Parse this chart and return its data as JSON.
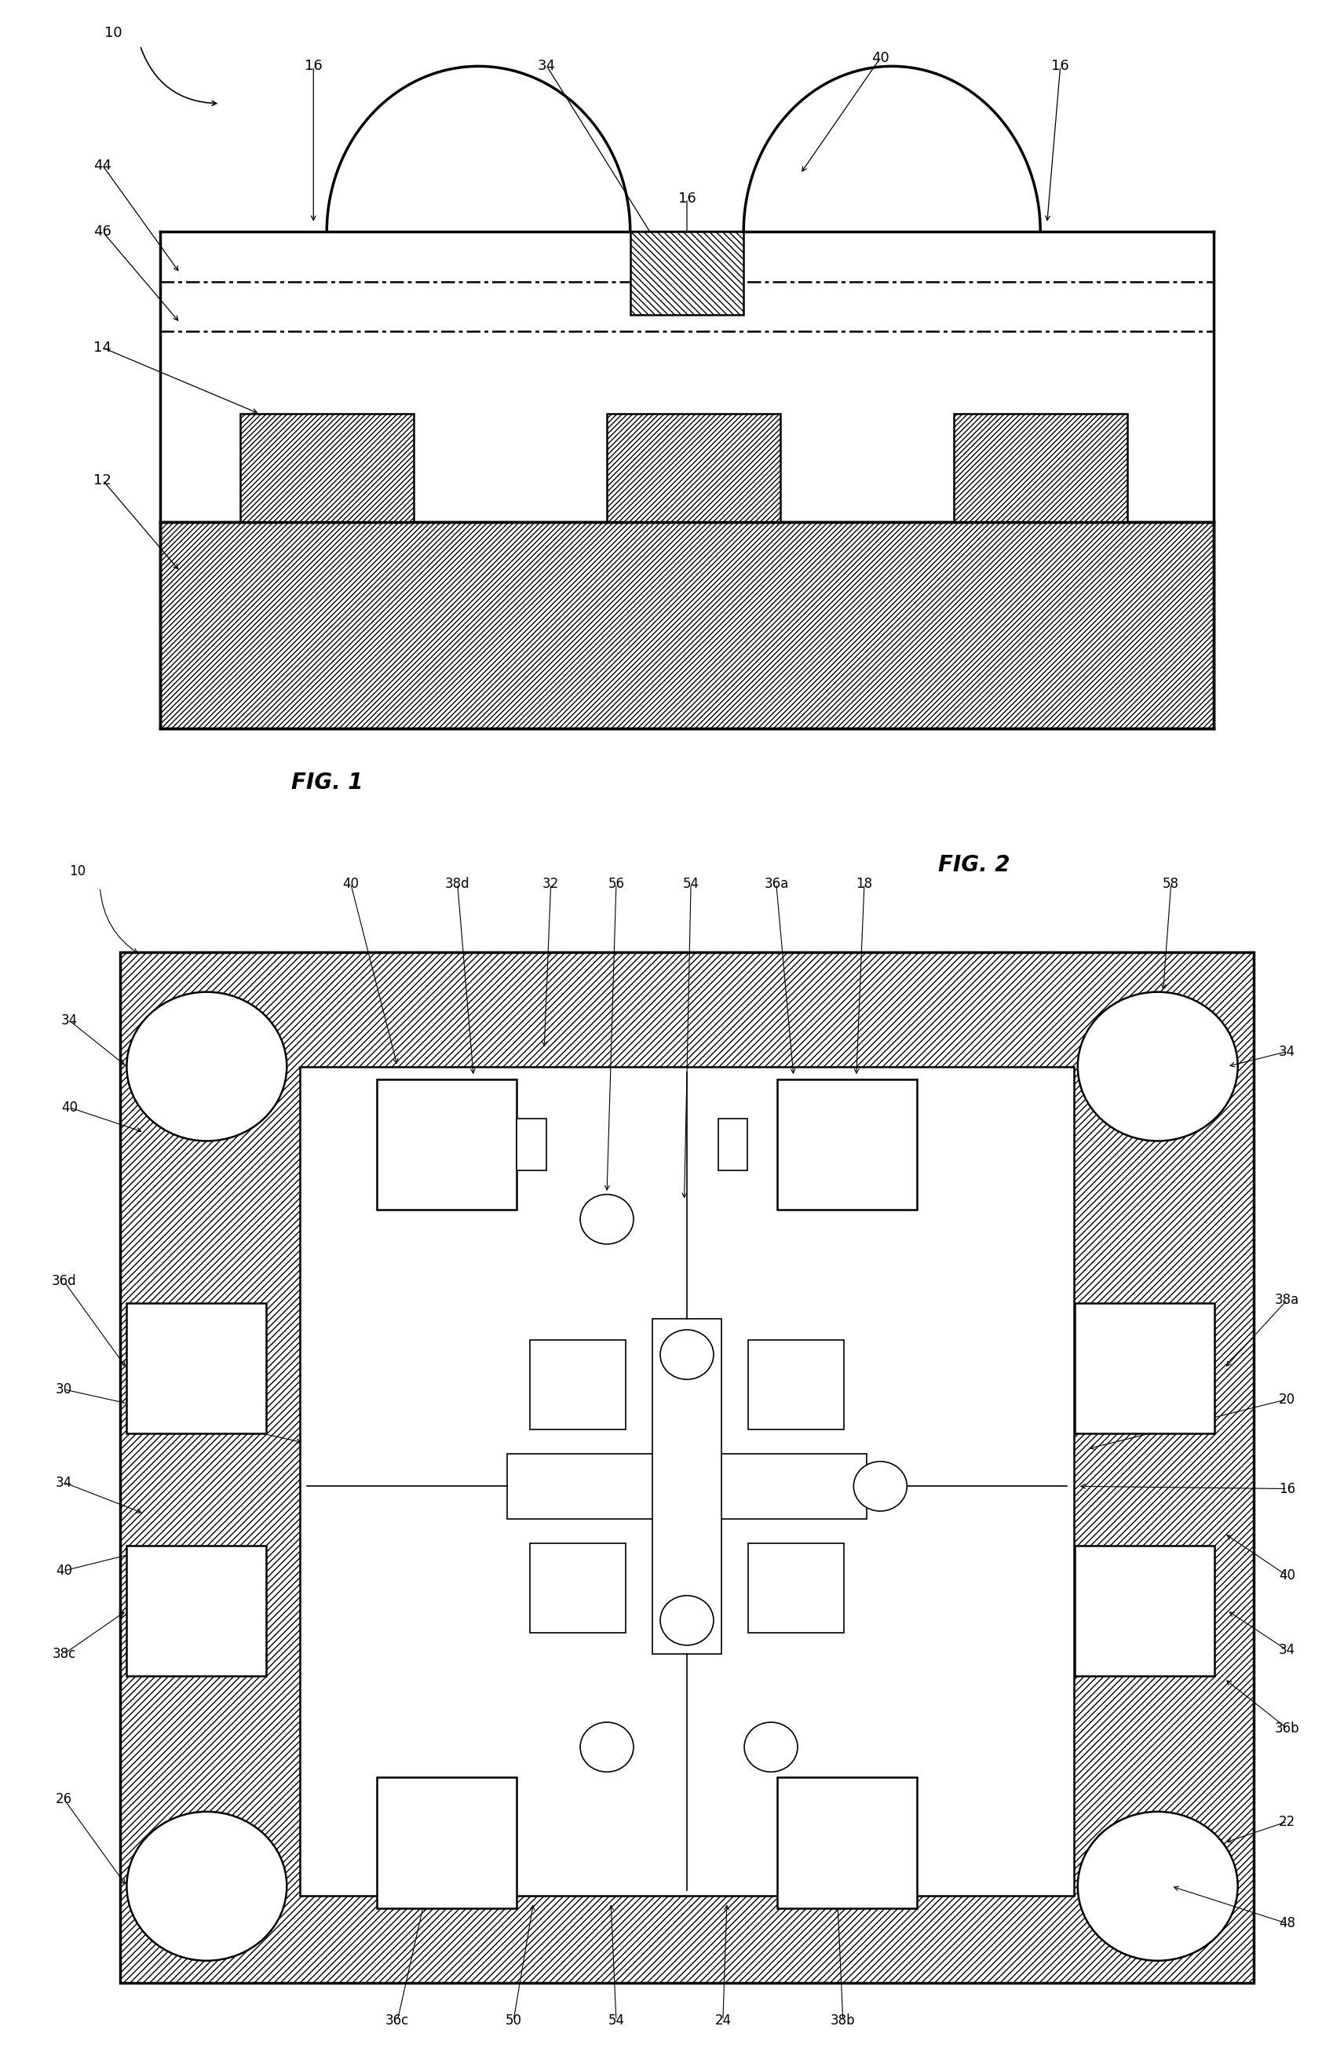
{
  "fig_width": 16.99,
  "fig_height": 26.37,
  "lw_thick": 2.5,
  "lw_med": 1.8,
  "lw_thin": 1.2,
  "fs_label": 13,
  "fs_fig": 20,
  "fs_ref": 12,
  "fig1_caption": "FIG. 1",
  "fig2_caption": "FIG. 2",
  "fig1_label_10": [
    0.085,
    0.96
  ],
  "fig2_label_10": [
    0.058,
    0.965
  ]
}
